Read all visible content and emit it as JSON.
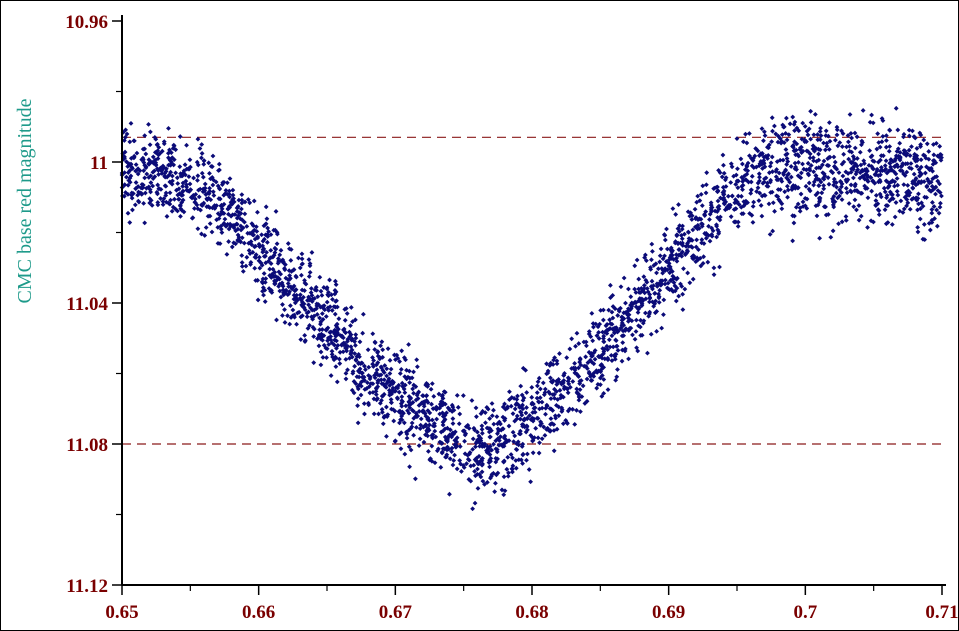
{
  "colors": {
    "axis": "#000000",
    "tick_label": "#7a0000",
    "axis_title": "#1e9a8a",
    "points": "#0b0b78",
    "ref_line": "#8b1a1a"
  },
  "chart_data": {
    "type": "scatter",
    "title": "",
    "xlabel": "",
    "ylabel": "CMC base red magnitude",
    "xlim": [
      0.65,
      0.71
    ],
    "ylim": [
      10.96,
      11.12
    ],
    "y_inverted": true,
    "grid": false,
    "x_ticks": [
      "0.65",
      "0.66",
      "0.67",
      "0.68",
      "0.69",
      "0.7",
      "0.71"
    ],
    "y_ticks": [
      "10.96",
      "11",
      "11.04",
      "11.08",
      "11.12"
    ],
    "reference_lines_y": [
      10.993,
      11.08
    ],
    "series": [
      {
        "marker": "diamond",
        "approx_points": 3000,
        "trend": [
          [
            0.65,
            11.004
          ],
          [
            0.652,
            11.002
          ],
          [
            0.654,
            11.005
          ],
          [
            0.656,
            11.008
          ],
          [
            0.658,
            11.014
          ],
          [
            0.66,
            11.024
          ],
          [
            0.662,
            11.033
          ],
          [
            0.664,
            11.042
          ],
          [
            0.666,
            11.05
          ],
          [
            0.668,
            11.06
          ],
          [
            0.67,
            11.066
          ],
          [
            0.672,
            11.072
          ],
          [
            0.674,
            11.078
          ],
          [
            0.676,
            11.083
          ],
          [
            0.678,
            11.078
          ],
          [
            0.68,
            11.072
          ],
          [
            0.682,
            11.066
          ],
          [
            0.684,
            11.058
          ],
          [
            0.686,
            11.05
          ],
          [
            0.688,
            11.04
          ],
          [
            0.69,
            11.03
          ],
          [
            0.692,
            11.02
          ],
          [
            0.694,
            11.012
          ],
          [
            0.696,
            11.005
          ],
          [
            0.698,
            11.002
          ],
          [
            0.7,
            11.002
          ],
          [
            0.702,
            11.004
          ],
          [
            0.704,
            11.004
          ],
          [
            0.706,
            11.004
          ],
          [
            0.708,
            11.004
          ],
          [
            0.71,
            11.006
          ]
        ]
      }
    ]
  }
}
